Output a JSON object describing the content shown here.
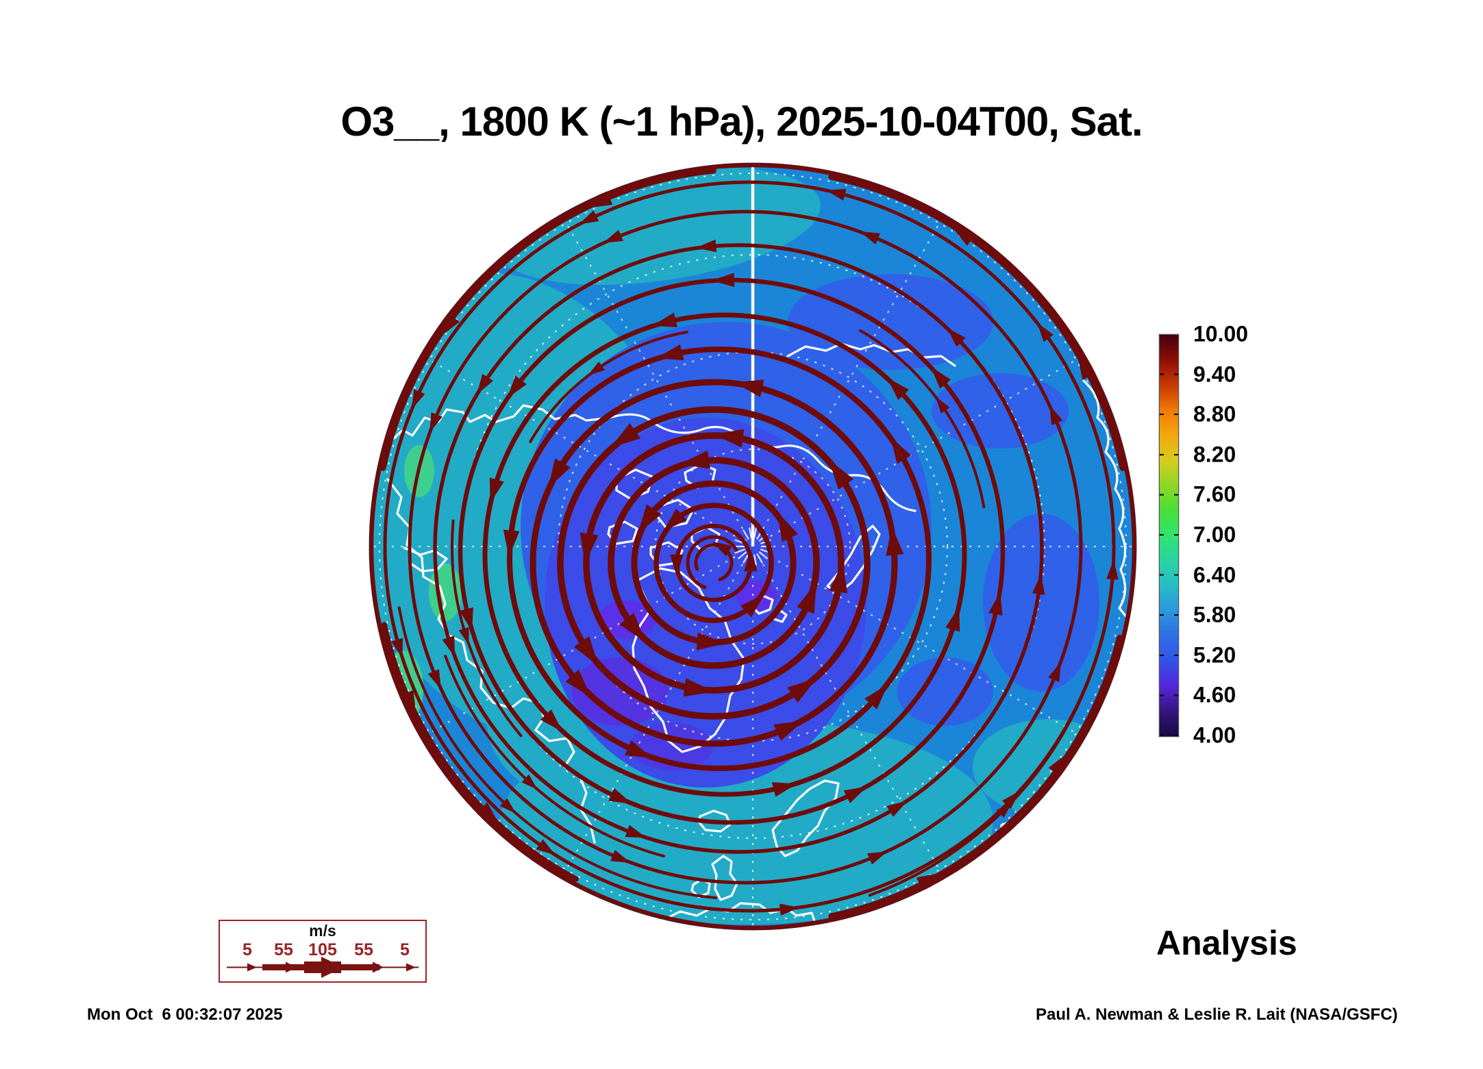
{
  "title": "O3__, 1800 K (~1 hPa), 2025-10-04T00, Sat.",
  "analysis_label": "Analysis",
  "timestamp": "Mon Oct  6 00:32:07 2025",
  "attribution": "Paul A. Newman & Leslie R. Lait (NASA/GSFC)",
  "colorbar": {
    "labels": [
      "10.00",
      "9.40",
      "8.80",
      "8.20",
      "7.60",
      "7.00",
      "6.40",
      "5.80",
      "5.20",
      "4.60",
      "4.00"
    ],
    "top_value": 10.0,
    "bottom_value": 4.0,
    "interval": 0.6,
    "gradient_stops": [
      "#45000d",
      "#8c0f08",
      "#c93803",
      "#ef7a06",
      "#f2a70e",
      "#d8cb1c",
      "#8ed626",
      "#46df38",
      "#2ee46e",
      "#29d4a4",
      "#28bcc4",
      "#2b96dc",
      "#2f6fe4",
      "#3352ea",
      "#5526dc",
      "#36147e",
      "#180b42"
    ]
  },
  "wind_legend": {
    "units_label": "m/s",
    "speed_labels": [
      "5",
      "55",
      "105",
      "55",
      "5"
    ],
    "accent_color": "#9b2222"
  },
  "map_colors": {
    "ocean_base": "#1b86d8",
    "teal": "#22abc7",
    "green": "#3ecf8e",
    "mid_blue": "#2f62e8",
    "royal_blue": "#3b4ce8",
    "purple": "#5a30e8",
    "streamline": "#6e0b0b",
    "coastline": "#ffffff",
    "graticule": "#ffffff"
  },
  "chart_data": {
    "type": "heatmap",
    "title": "O3__, 1800 K (~1 hPa), 2025-10-04T00, Sat.",
    "species": "O3",
    "theta_level": "1800 K",
    "pressure_level": "~1 hPa",
    "valid_time": "2025-10-04T00",
    "weekday": "Sat.",
    "product": "Analysis",
    "projection": "north polar stereographic",
    "colorbar_levels": [
      4.0,
      4.6,
      5.2,
      5.8,
      6.4,
      7.0,
      7.6,
      8.2,
      8.8,
      9.4,
      10.0
    ],
    "colorbar_range": [
      4.0,
      10.0
    ],
    "legend_position": "right",
    "wind_streamline_speed_scale_m_s": [
      5,
      55,
      105,
      55,
      5
    ],
    "field_summary": "Polar cap filled contours mostly 4.6-6.4 (blue/teal with purple minimum near the pole-side vortex core); counterclockwise circumpolar streamlines thicken near the vortex and at the map rim where colorbar maximum (dark red) values appear."
  }
}
